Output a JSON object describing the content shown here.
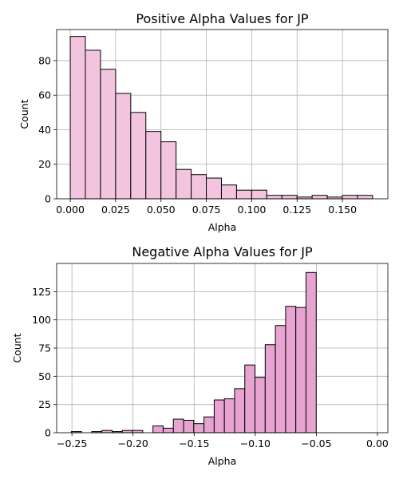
{
  "chart_data": [
    {
      "type": "bar",
      "title": "Positive Alpha Values for JP",
      "xlabel": "Alpha",
      "ylabel": "Count",
      "color": "#f2c4e0",
      "xlim": [
        -0.0075,
        0.175
      ],
      "ylim": [
        0,
        98
      ],
      "xticks": [
        "0.000",
        "0.025",
        "0.050",
        "0.075",
        "0.100",
        "0.125",
        "0.150"
      ],
      "xtick_values": [
        0,
        0.025,
        0.05,
        0.075,
        0.1,
        0.125,
        0.15
      ],
      "yticks": [
        "0",
        "20",
        "40",
        "60",
        "80"
      ],
      "ytick_values": [
        0,
        20,
        40,
        60,
        80
      ],
      "bin_start": 0,
      "bin_width": 0.00833,
      "values": [
        94,
        86,
        75,
        61,
        50,
        39,
        33,
        17,
        14,
        12,
        8,
        5,
        5,
        2,
        2,
        1,
        2,
        1,
        2,
        2
      ],
      "grid": true
    },
    {
      "type": "bar",
      "title": "Negative Alpha Values for JP",
      "xlabel": "Alpha",
      "ylabel": "Count",
      "color": "#e8a4d0",
      "xlim": [
        -0.2625,
        0.0085
      ],
      "ylim": [
        0,
        150
      ],
      "xticks": [
        "−0.25",
        "−0.20",
        "−0.15",
        "−0.10",
        "−0.05",
        "0.00"
      ],
      "xtick_values": [
        -0.25,
        -0.2,
        -0.15,
        -0.1,
        -0.05,
        0
      ],
      "yticks": [
        "0",
        "25",
        "50",
        "75",
        "100",
        "125"
      ],
      "ytick_values": [
        0,
        25,
        50,
        75,
        100,
        125
      ],
      "bin_start": -0.2505,
      "bin_width": 0.00835,
      "values": [
        1,
        0,
        1,
        2,
        1,
        2,
        2,
        0,
        6,
        4,
        12,
        11,
        8,
        14,
        29,
        30,
        39,
        60,
        49,
        78,
        95,
        112,
        111,
        142
      ],
      "grid": true
    }
  ]
}
